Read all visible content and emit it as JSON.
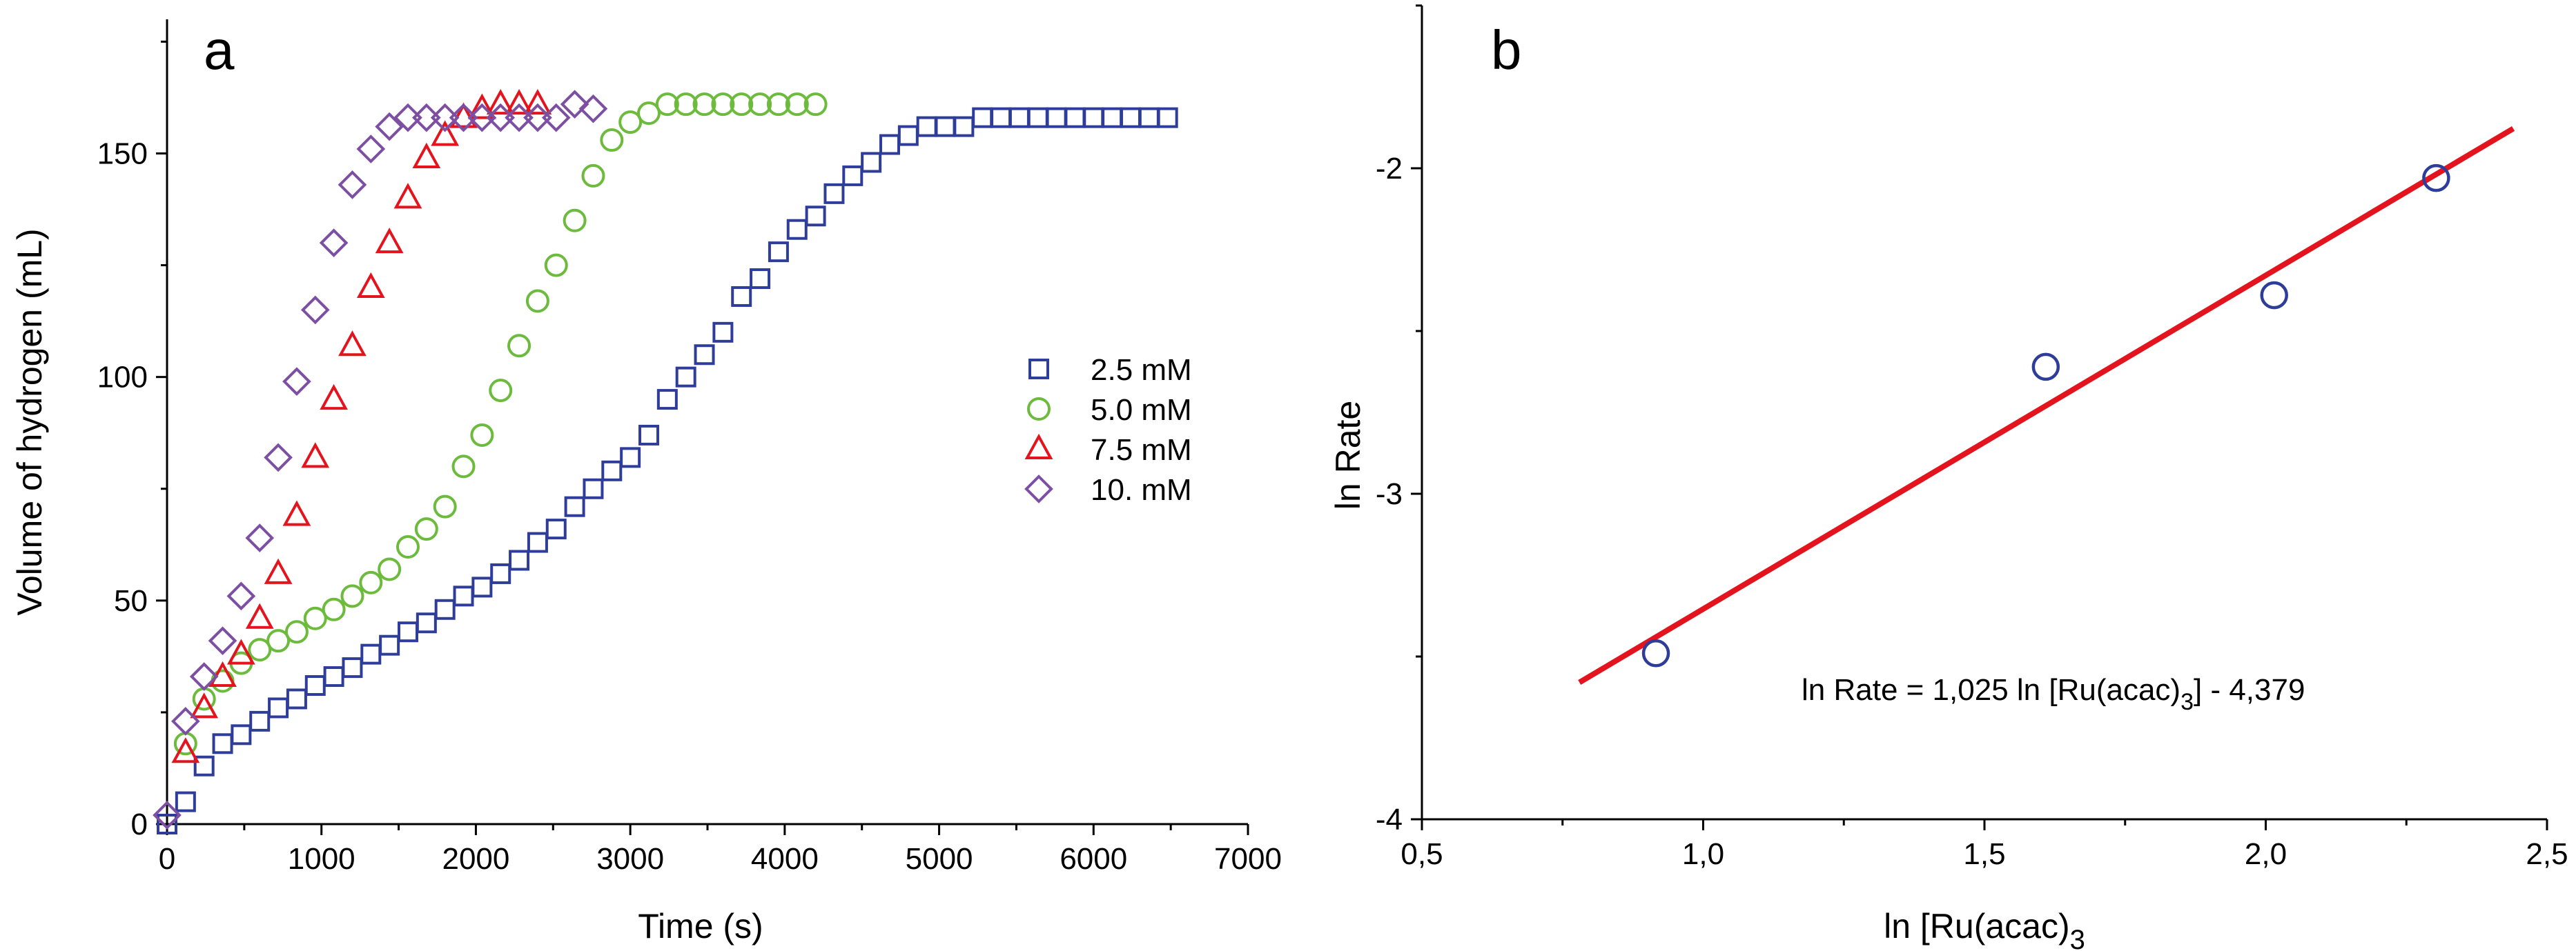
{
  "chart_data": [
    {
      "type": "scatter",
      "panel": "a",
      "xlabel": "Time (s)",
      "ylabel": "Volume of  hydrogen (mL)",
      "xlim": [
        0,
        7000
      ],
      "ylim": [
        0,
        180
      ],
      "xticks": [
        "0",
        "1000",
        "2000",
        "3000",
        "4000",
        "5000",
        "6000",
        "7000"
      ],
      "yticks": [
        "0",
        "50",
        "100",
        "150"
      ],
      "legend_position": "center-right",
      "series": [
        {
          "name": "2.5 mM",
          "marker": "square",
          "color": "#2e3d9a",
          "points": [
            [
              0,
              0
            ],
            [
              120,
              5
            ],
            [
              240,
              13
            ],
            [
              360,
              18
            ],
            [
              480,
              20
            ],
            [
              600,
              23
            ],
            [
              720,
              26
            ],
            [
              840,
              28
            ],
            [
              960,
              31
            ],
            [
              1080,
              33
            ],
            [
              1200,
              35
            ],
            [
              1320,
              38
            ],
            [
              1440,
              40
            ],
            [
              1560,
              43
            ],
            [
              1680,
              45
            ],
            [
              1800,
              48
            ],
            [
              1920,
              51
            ],
            [
              2040,
              53
            ],
            [
              2160,
              56
            ],
            [
              2280,
              59
            ],
            [
              2400,
              63
            ],
            [
              2520,
              66
            ],
            [
              2640,
              71
            ],
            [
              2760,
              75
            ],
            [
              2880,
              79
            ],
            [
              3000,
              82
            ],
            [
              3120,
              87
            ],
            [
              3240,
              95
            ],
            [
              3360,
              100
            ],
            [
              3480,
              105
            ],
            [
              3600,
              110
            ],
            [
              3720,
              118
            ],
            [
              3840,
              122
            ],
            [
              3960,
              128
            ],
            [
              4080,
              133
            ],
            [
              4200,
              136
            ],
            [
              4320,
              141
            ],
            [
              4440,
              145
            ],
            [
              4560,
              148
            ],
            [
              4680,
              152
            ],
            [
              4800,
              154
            ],
            [
              4920,
              156
            ],
            [
              5040,
              156
            ],
            [
              5160,
              156
            ],
            [
              5280,
              158
            ],
            [
              5400,
              158
            ],
            [
              5520,
              158
            ],
            [
              5640,
              158
            ],
            [
              5760,
              158
            ],
            [
              5880,
              158
            ],
            [
              6000,
              158
            ],
            [
              6120,
              158
            ],
            [
              6240,
              158
            ],
            [
              6360,
              158
            ],
            [
              6480,
              158
            ]
          ]
        },
        {
          "name": "5.0 mM",
          "marker": "circle",
          "color": "#6dbb3d",
          "points": [
            [
              120,
              18
            ],
            [
              240,
              28
            ],
            [
              360,
              32
            ],
            [
              480,
              36
            ],
            [
              600,
              39
            ],
            [
              720,
              41
            ],
            [
              840,
              43
            ],
            [
              960,
              46
            ],
            [
              1080,
              48
            ],
            [
              1200,
              51
            ],
            [
              1320,
              54
            ],
            [
              1440,
              57
            ],
            [
              1560,
              62
            ],
            [
              1680,
              66
            ],
            [
              1800,
              71
            ],
            [
              1920,
              80
            ],
            [
              2040,
              87
            ],
            [
              2160,
              97
            ],
            [
              2280,
              107
            ],
            [
              2400,
              117
            ],
            [
              2520,
              125
            ],
            [
              2640,
              135
            ],
            [
              2760,
              145
            ],
            [
              2880,
              153
            ],
            [
              3000,
              157
            ],
            [
              3120,
              159
            ],
            [
              3240,
              161
            ],
            [
              3360,
              161
            ],
            [
              3480,
              161
            ],
            [
              3600,
              161
            ],
            [
              3720,
              161
            ],
            [
              3840,
              161
            ],
            [
              3960,
              161
            ],
            [
              4080,
              161
            ],
            [
              4200,
              161
            ]
          ]
        },
        {
          "name": "7.5 mM",
          "marker": "triangle",
          "color": "#e3141d",
          "points": [
            [
              120,
              16
            ],
            [
              240,
              26
            ],
            [
              360,
              33
            ],
            [
              480,
              38
            ],
            [
              600,
              46
            ],
            [
              720,
              56
            ],
            [
              840,
              69
            ],
            [
              960,
              82
            ],
            [
              1080,
              95
            ],
            [
              1200,
              107
            ],
            [
              1320,
              120
            ],
            [
              1440,
              130
            ],
            [
              1560,
              140
            ],
            [
              1680,
              149
            ],
            [
              1800,
              154
            ],
            [
              1920,
              158
            ],
            [
              2040,
              160
            ],
            [
              2160,
              161
            ],
            [
              2280,
              161
            ],
            [
              2400,
              161
            ]
          ]
        },
        {
          "name": "10. mM",
          "marker": "diamond",
          "color": "#7c4fa3",
          "points": [
            [
              0,
              2
            ],
            [
              120,
              23
            ],
            [
              240,
              33
            ],
            [
              360,
              41
            ],
            [
              480,
              51
            ],
            [
              600,
              64
            ],
            [
              720,
              82
            ],
            [
              840,
              99
            ],
            [
              960,
              115
            ],
            [
              1080,
              130
            ],
            [
              1200,
              143
            ],
            [
              1320,
              151
            ],
            [
              1440,
              156
            ],
            [
              1560,
              158
            ],
            [
              1680,
              158
            ],
            [
              1800,
              158
            ],
            [
              1920,
              158
            ],
            [
              2040,
              158
            ],
            [
              2160,
              158
            ],
            [
              2280,
              158
            ],
            [
              2400,
              158
            ],
            [
              2520,
              158
            ],
            [
              2640,
              161
            ],
            [
              2760,
              160
            ]
          ]
        }
      ]
    },
    {
      "type": "scatter",
      "panel": "b",
      "xlabel": "ln [Ru(acac)3]",
      "xlabel_main": "ln [Ru(acac)",
      "xlabel_sub": "3",
      "ylabel": "ln Rate",
      "xlim": [
        0.5,
        2.5
      ],
      "ylim": [
        -4,
        -1.5
      ],
      "xticks": [
        "0,5",
        "1,0",
        "1,5",
        "2,0",
        "2,5"
      ],
      "yticks": [
        "-4",
        "-3",
        "-2"
      ],
      "points": [
        [
          0.916,
          -3.49
        ],
        [
          1.609,
          -2.61
        ],
        [
          2.015,
          -2.39
        ],
        [
          2.303,
          -2.03
        ]
      ],
      "marker_color": "#2e3d9a",
      "fit": {
        "slope": 1.025,
        "intercept": -4.379,
        "x_range": [
          0.78,
          2.44
        ],
        "color": "#e3141d"
      },
      "equation_main": "ln Rate = 1,025 ln [Ru(acac)",
      "equation_sub": "3",
      "equation_tail": "] - 4,379"
    }
  ]
}
